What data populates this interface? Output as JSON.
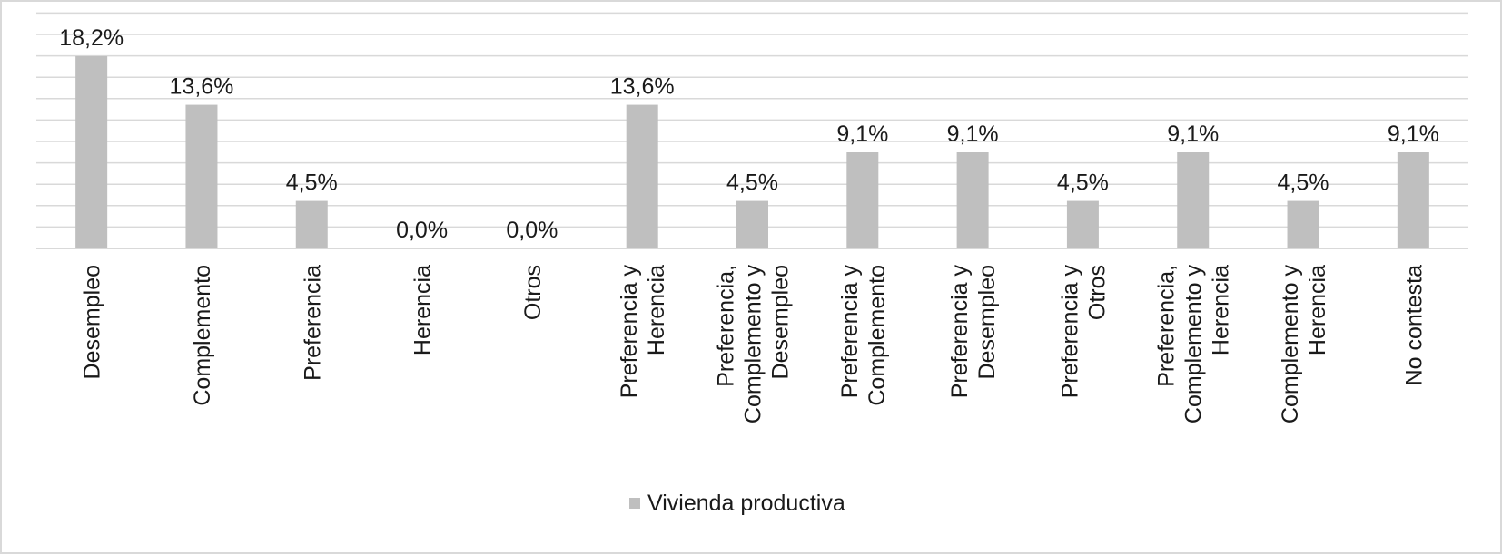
{
  "chart_data": {
    "type": "bar",
    "categories": [
      [
        "Desempleo"
      ],
      [
        "Complemento"
      ],
      [
        "Preferencia"
      ],
      [
        "Herencia"
      ],
      [
        "Otros"
      ],
      [
        "Preferencia y",
        "Herencia"
      ],
      [
        "Preferencia,",
        "Complemento y",
        "Desempleo"
      ],
      [
        "Preferencia y",
        "Complemento"
      ],
      [
        "Preferencia y",
        "Desempleo"
      ],
      [
        "Preferencia y",
        "Otros"
      ],
      [
        "Preferencia,",
        "Complemento y",
        "Herencia"
      ],
      [
        "Complemento y",
        "Herencia"
      ],
      [
        "No contesta"
      ]
    ],
    "series": [
      {
        "name": "Vivienda productiva",
        "values": [
          18.2,
          13.6,
          4.5,
          0.0,
          0.0,
          13.6,
          4.5,
          9.1,
          9.1,
          4.5,
          9.1,
          4.5,
          9.1
        ],
        "labels": [
          "18,2%",
          "13,6%",
          "4,5%",
          "0,0%",
          "0,0%",
          "13,6%",
          "4,5%",
          "9,1%",
          "9,1%",
          "4,5%",
          "9,1%",
          "4,5%",
          "9,1%"
        ],
        "color": "#bfbfbf"
      }
    ],
    "ylim": [
      0,
      20
    ],
    "grid": true,
    "legend": "bottom-center",
    "gridline_color": "#d9d9d9"
  }
}
